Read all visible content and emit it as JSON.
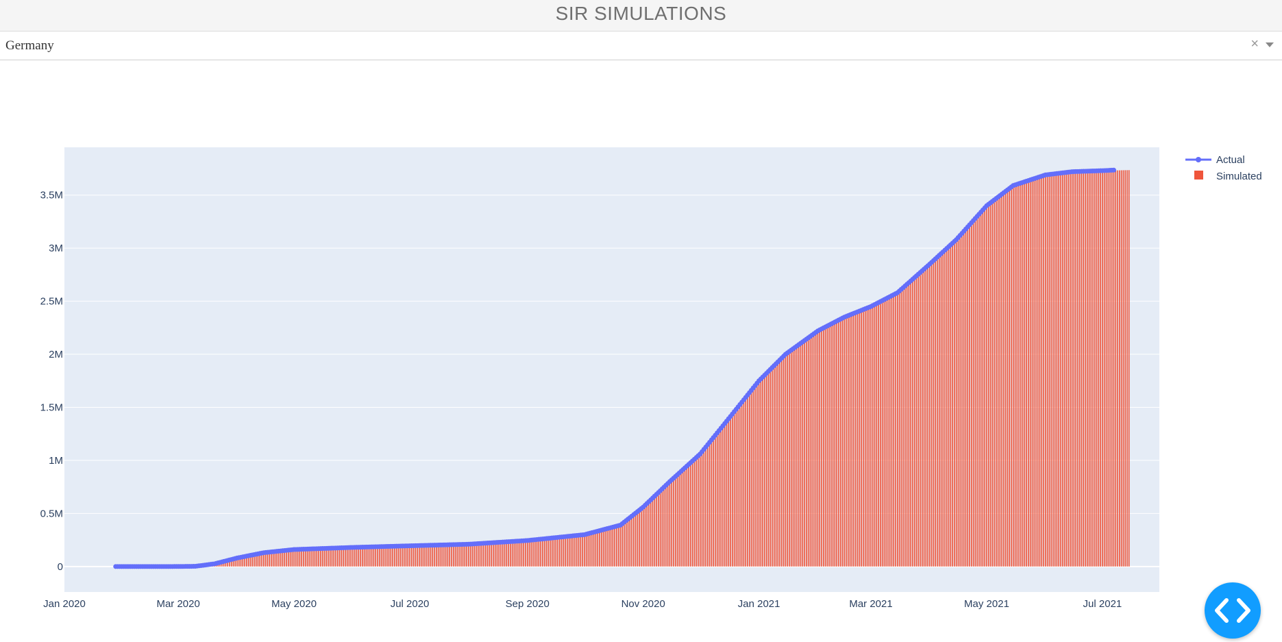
{
  "header": {
    "title": "SIR SIMULATIONS"
  },
  "country_select": {
    "value": "Germany",
    "clear_glyph": "×"
  },
  "colors": {
    "actual": "#636efa",
    "simulated": "#ef553b",
    "plot_bg": "#e5ecf6",
    "title": "#6f6f6f",
    "fab": "#119dff"
  },
  "fab": {
    "icon": "code-icon"
  },
  "chart_data": {
    "type": "bar",
    "title": "",
    "xlabel": "",
    "ylabel": "",
    "x_range": [
      "2020-01-01",
      "2021-07-31"
    ],
    "ylim": [
      -240000,
      3950000
    ],
    "grid": true,
    "legend_position": "top-right",
    "x_tick_labels": [
      "Jan 2020",
      "Mar 2020",
      "May 2020",
      "Jul 2020",
      "Sep 2020",
      "Nov 2020",
      "Jan 2021",
      "Mar 2021",
      "May 2021",
      "Jul 2021"
    ],
    "x_tick_dates": [
      "2020-01-01",
      "2020-03-01",
      "2020-05-01",
      "2020-07-01",
      "2020-09-01",
      "2020-11-01",
      "2021-01-01",
      "2021-03-01",
      "2021-05-01",
      "2021-07-01"
    ],
    "y_tick_labels": [
      "0",
      "0.5M",
      "1M",
      "1.5M",
      "2M",
      "2.5M",
      "3M",
      "3.5M"
    ],
    "y_tick_values": [
      0,
      500000,
      1000000,
      1500000,
      2000000,
      2500000,
      3000000,
      3500000
    ],
    "series": [
      {
        "name": "Actual",
        "type": "line+markers",
        "x": [
          "2020-01-28",
          "2020-02-15",
          "2020-03-01",
          "2020-03-10",
          "2020-03-20",
          "2020-04-01",
          "2020-04-15",
          "2020-05-01",
          "2020-06-01",
          "2020-07-01",
          "2020-08-01",
          "2020-09-01",
          "2020-10-01",
          "2020-10-20",
          "2020-11-01",
          "2020-11-15",
          "2020-12-01",
          "2020-12-15",
          "2021-01-01",
          "2021-01-15",
          "2021-02-01",
          "2021-02-15",
          "2021-03-01",
          "2021-03-15",
          "2021-04-01",
          "2021-04-15",
          "2021-05-01",
          "2021-05-15",
          "2021-06-01",
          "2021-06-15",
          "2021-07-01",
          "2021-07-07"
        ],
        "y": [
          0,
          0,
          100,
          2000,
          25000,
          80000,
          130000,
          160000,
          180000,
          195000,
          210000,
          245000,
          300000,
          390000,
          560000,
          800000,
          1060000,
          1370000,
          1750000,
          2000000,
          2220000,
          2350000,
          2450000,
          2580000,
          2850000,
          3080000,
          3400000,
          3590000,
          3690000,
          3720000,
          3730000,
          3735000
        ]
      },
      {
        "name": "Simulated",
        "type": "bar",
        "x": [
          "2020-03-01",
          "2020-03-10",
          "2020-03-20",
          "2020-04-01",
          "2020-04-15",
          "2020-05-01",
          "2020-06-01",
          "2020-07-01",
          "2020-08-01",
          "2020-09-01",
          "2020-10-01",
          "2020-10-20",
          "2020-11-01",
          "2020-11-15",
          "2020-12-01",
          "2020-12-15",
          "2021-01-01",
          "2021-01-15",
          "2021-02-01",
          "2021-02-15",
          "2021-03-01",
          "2021-03-15",
          "2021-04-01",
          "2021-04-15",
          "2021-05-01",
          "2021-05-15",
          "2021-06-01",
          "2021-06-15",
          "2021-07-01",
          "2021-07-15"
        ],
        "y": [
          100,
          2000,
          25000,
          80000,
          130000,
          160000,
          180000,
          195000,
          210000,
          245000,
          300000,
          390000,
          560000,
          800000,
          1060000,
          1370000,
          1750000,
          2000000,
          2220000,
          2350000,
          2450000,
          2580000,
          2850000,
          3080000,
          3400000,
          3590000,
          3690000,
          3720000,
          3730000,
          3735000
        ]
      }
    ]
  }
}
